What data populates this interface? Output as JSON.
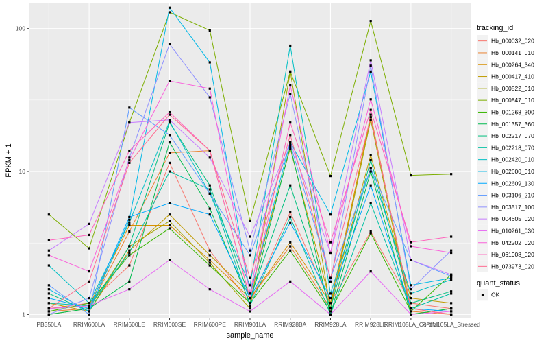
{
  "chart_data": {
    "type": "line",
    "xlabel": "sample_name",
    "ylabel": "FPKM + 1",
    "y_scale": "log10",
    "ylim": [
      0.95,
      150
    ],
    "yticks": [
      {
        "value": 1,
        "label": "1"
      },
      {
        "value": 10,
        "label": "10"
      },
      {
        "value": 100,
        "label": "100"
      }
    ],
    "grid": true,
    "legend_position": "right",
    "categories": [
      "PB350LA",
      "RRIM600LA",
      "RRIM600LE",
      "RRIM600SE",
      "RRIM600PE",
      "RRIM901LA",
      "RRIM928BA",
      "RRIM928LA",
      "RRIM928LE",
      "RRIM105LA_Control",
      "RRIM105LA_Stressed"
    ],
    "legend_title": "tracking_id",
    "series": [
      {
        "name": "Hb_000032_020",
        "color": "#F8766D",
        "values": [
          1.1,
          1.2,
          2.2,
          11.5,
          2.8,
          1.2,
          5.2,
          1.2,
          3.8,
          1.2,
          1.1
        ]
      },
      {
        "name": "Hb_000141_010",
        "color": "#EA8331",
        "values": [
          1.05,
          1.1,
          3.8,
          13.5,
          14.0,
          1.3,
          3.0,
          1.1,
          25.0,
          1.05,
          1.0
        ]
      },
      {
        "name": "Hb_000264_340",
        "color": "#D89000",
        "values": [
          1.1,
          1.15,
          4.2,
          4.2,
          2.4,
          1.3,
          3.2,
          1.2,
          24.0,
          1.1,
          1.0
        ]
      },
      {
        "name": "Hb_000417_410",
        "color": "#C09B00",
        "values": [
          1.2,
          1.05,
          2.8,
          5.0,
          2.6,
          1.4,
          14.5,
          1.2,
          13.0,
          1.3,
          1.2
        ]
      },
      {
        "name": "Hb_000522_010",
        "color": "#A3A500",
        "values": [
          1.0,
          1.1,
          3.0,
          4.5,
          2.3,
          1.1,
          50.0,
          1.1,
          23.0,
          1.0,
          1.1
        ]
      },
      {
        "name": "Hb_000847_010",
        "color": "#7CAE00",
        "values": [
          5.0,
          2.9,
          22.0,
          130.0,
          97.0,
          4.5,
          50.0,
          9.3,
          113.0,
          9.4,
          9.6
        ]
      },
      {
        "name": "Hb_001268_300",
        "color": "#39B600",
        "values": [
          1.05,
          1.2,
          2.6,
          4.0,
          2.2,
          1.2,
          2.8,
          1.05,
          3.7,
          1.05,
          1.9
        ]
      },
      {
        "name": "Hb_001357_360",
        "color": "#00BB4E",
        "values": [
          1.0,
          1.1,
          1.7,
          16.0,
          5.5,
          1.2,
          15.0,
          1.0,
          10.0,
          1.0,
          1.1
        ]
      },
      {
        "name": "Hb_002217_070",
        "color": "#00BF7D",
        "values": [
          1.4,
          1.05,
          3.0,
          22.0,
          8.0,
          1.3,
          8.0,
          1.1,
          12.0,
          1.2,
          1.45
        ]
      },
      {
        "name": "Hb_002218_070",
        "color": "#00C1A3",
        "values": [
          1.2,
          1.15,
          2.7,
          10.0,
          7.5,
          1.15,
          4.8,
          1.0,
          6.0,
          1.1,
          1.4
        ]
      },
      {
        "name": "Hb_002420_010",
        "color": "#00BFC4",
        "values": [
          2.2,
          1.2,
          4.4,
          22.5,
          7.0,
          1.6,
          76.0,
          1.4,
          10.5,
          1.4,
          1.75
        ]
      },
      {
        "name": "Hb_002600_010",
        "color": "#00B8E7",
        "values": [
          1.5,
          1.05,
          4.6,
          140.0,
          58.0,
          1.4,
          16.0,
          5.0,
          50.0,
          1.6,
          1.8
        ]
      },
      {
        "name": "Hb_002609_130",
        "color": "#00A9FF",
        "values": [
          1.3,
          1.1,
          4.8,
          6.0,
          5.0,
          1.3,
          4.4,
          1.3,
          8.0,
          1.1,
          1.05
        ]
      },
      {
        "name": "Hb_003106_210",
        "color": "#619CFF",
        "values": [
          1.6,
          1.0,
          28.0,
          18.0,
          7.0,
          2.6,
          15.5,
          1.8,
          10.5,
          2.4,
          1.85
        ]
      },
      {
        "name": "Hb_003517_100",
        "color": "#8F91FF",
        "values": [
          1.0,
          1.3,
          12.5,
          78.0,
          33.0,
          2.8,
          35.0,
          1.7,
          55.0,
          1.5,
          2.8
        ]
      },
      {
        "name": "Hb_004605_020",
        "color": "#C77CFF",
        "values": [
          2.8,
          4.3,
          22.0,
          23.0,
          12.5,
          3.5,
          16.0,
          2.7,
          60.0,
          2.4,
          1.9
        ]
      },
      {
        "name": "Hb_010261_030",
        "color": "#E76BF3",
        "values": [
          1.1,
          1.15,
          1.5,
          2.4,
          1.5,
          1.05,
          1.7,
          1.0,
          2.0,
          1.0,
          1.05
        ]
      },
      {
        "name": "Hb_042202_020",
        "color": "#FA62DB",
        "values": [
          2.6,
          2.0,
          12.0,
          43.0,
          38.0,
          1.4,
          40.0,
          2.7,
          32.0,
          3.0,
          2.7
        ]
      },
      {
        "name": "Hb_061908_020",
        "color": "#FF62BC",
        "values": [
          3.3,
          3.6,
          14.0,
          26.0,
          14.0,
          1.3,
          22.0,
          3.2,
          27.0,
          3.2,
          3.5
        ]
      },
      {
        "name": "Hb_073973_020",
        "color": "#FF6C91",
        "values": [
          1.1,
          1.7,
          11.5,
          25.0,
          14.0,
          1.8,
          18.0,
          1.8,
          24.0,
          1.1,
          1.0
        ]
      }
    ],
    "shape_legend": {
      "title": "quant_status",
      "items": [
        {
          "label": "OK"
        }
      ]
    },
    "panel_background": "#EBEBEB",
    "grid_color": "#FFFFFF"
  }
}
